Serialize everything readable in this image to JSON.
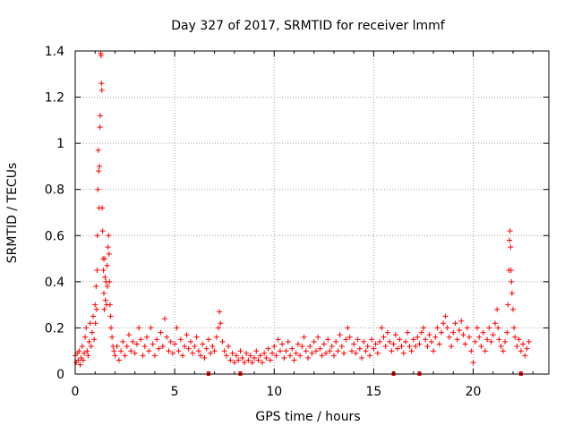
{
  "chart_data": {
    "type": "scatter",
    "title": "Day 327 of 2017, SRMTID for receiver lmmf",
    "xlabel": "GPS time / hours",
    "ylabel": "SRMTID / TECUs",
    "xlim": [
      0,
      23.8
    ],
    "ylim": [
      0,
      1.4
    ],
    "xticks": [
      0,
      5,
      10,
      15,
      20
    ],
    "xtick_labels": [
      "0",
      "5",
      "10",
      "15",
      "20"
    ],
    "yticks": [
      0,
      0.2,
      0.4,
      0.6,
      0.8,
      1.0,
      1.2,
      1.4
    ],
    "ytick_labels": [
      "0",
      "0.2",
      "0.4",
      "0.6",
      "0.8",
      "1",
      "1.2",
      "1.4"
    ],
    "grid": true,
    "marker": "plus",
    "color": "#ff0000",
    "series": [
      {
        "name": "SRMTID",
        "points": [
          [
            0.0,
            0.08
          ],
          [
            0.05,
            0.05
          ],
          [
            0.1,
            0.09
          ],
          [
            0.15,
            0.06
          ],
          [
            0.2,
            0.1
          ],
          [
            0.25,
            0.04
          ],
          [
            0.3,
            0.07
          ],
          [
            0.35,
            0.12
          ],
          [
            0.4,
            0.06
          ],
          [
            0.45,
            0.09
          ],
          [
            0.5,
            0.16
          ],
          [
            0.55,
            0.2
          ],
          [
            0.6,
            0.1
          ],
          [
            0.65,
            0.08
          ],
          [
            0.7,
            0.14
          ],
          [
            0.75,
            0.22
          ],
          [
            0.8,
            0.12
          ],
          [
            0.85,
            0.18
          ],
          [
            0.9,
            0.25
          ],
          [
            0.95,
            0.15
          ],
          [
            1.0,
            0.3
          ],
          [
            1.02,
            0.22
          ],
          [
            1.05,
            0.38
          ],
          [
            1.08,
            0.28
          ],
          [
            1.1,
            0.45
          ],
          [
            1.12,
            0.6
          ],
          [
            1.14,
            0.8
          ],
          [
            1.16,
            0.97
          ],
          [
            1.18,
            0.88
          ],
          [
            1.2,
            0.72
          ],
          [
            1.22,
            0.9
          ],
          [
            1.24,
            1.07
          ],
          [
            1.26,
            1.12
          ],
          [
            1.28,
            1.39
          ],
          [
            1.3,
            1.38
          ],
          [
            1.32,
            1.26
          ],
          [
            1.34,
            1.23
          ],
          [
            1.36,
            0.72
          ],
          [
            1.38,
            0.62
          ],
          [
            1.4,
            0.5
          ],
          [
            1.42,
            0.45
          ],
          [
            1.44,
            0.35
          ],
          [
            1.46,
            0.28
          ],
          [
            1.48,
            0.5
          ],
          [
            1.5,
            0.42
          ],
          [
            1.52,
            0.32
          ],
          [
            1.55,
            0.4
          ],
          [
            1.58,
            0.3
          ],
          [
            1.6,
            0.47
          ],
          [
            1.62,
            0.38
          ],
          [
            1.65,
            0.55
          ],
          [
            1.68,
            0.6
          ],
          [
            1.7,
            0.52
          ],
          [
            1.72,
            0.4
          ],
          [
            1.75,
            0.3
          ],
          [
            1.78,
            0.25
          ],
          [
            1.8,
            0.2
          ],
          [
            1.85,
            0.16
          ],
          [
            1.9,
            0.12
          ],
          [
            1.95,
            0.1
          ],
          [
            2.0,
            0.08
          ],
          [
            2.1,
            0.12
          ],
          [
            2.2,
            0.06
          ],
          [
            2.3,
            0.1
          ],
          [
            2.4,
            0.14
          ],
          [
            2.5,
            0.08
          ],
          [
            2.6,
            0.12
          ],
          [
            2.7,
            0.17
          ],
          [
            2.8,
            0.1
          ],
          [
            2.9,
            0.14
          ],
          [
            3.0,
            0.09
          ],
          [
            3.1,
            0.13
          ],
          [
            3.2,
            0.2
          ],
          [
            3.3,
            0.15
          ],
          [
            3.4,
            0.08
          ],
          [
            3.5,
            0.12
          ],
          [
            3.6,
            0.16
          ],
          [
            3.7,
            0.1
          ],
          [
            3.8,
            0.2
          ],
          [
            3.9,
            0.13
          ],
          [
            4.0,
            0.08
          ],
          [
            4.1,
            0.15
          ],
          [
            4.2,
            0.11
          ],
          [
            4.3,
            0.18
          ],
          [
            4.4,
            0.12
          ],
          [
            4.5,
            0.24
          ],
          [
            4.6,
            0.16
          ],
          [
            4.7,
            0.1
          ],
          [
            4.8,
            0.14
          ],
          [
            4.9,
            0.09
          ],
          [
            5.0,
            0.13
          ],
          [
            5.1,
            0.2
          ],
          [
            5.2,
            0.1
          ],
          [
            5.3,
            0.15
          ],
          [
            5.4,
            0.08
          ],
          [
            5.5,
            0.12
          ],
          [
            5.6,
            0.17
          ],
          [
            5.7,
            0.11
          ],
          [
            5.8,
            0.14
          ],
          [
            5.9,
            0.09
          ],
          [
            6.0,
            0.12
          ],
          [
            6.1,
            0.16
          ],
          [
            6.2,
            0.1
          ],
          [
            6.3,
            0.08
          ],
          [
            6.4,
            0.13
          ],
          [
            6.5,
            0.07
          ],
          [
            6.6,
            0.11
          ],
          [
            6.7,
            0.15
          ],
          [
            6.8,
            0.09
          ],
          [
            6.9,
            0.12
          ],
          [
            7.0,
            0.1
          ],
          [
            7.1,
            0.16
          ],
          [
            7.2,
            0.2
          ],
          [
            7.25,
            0.27
          ],
          [
            7.3,
            0.22
          ],
          [
            7.4,
            0.14
          ],
          [
            7.5,
            0.1
          ],
          [
            7.6,
            0.08
          ],
          [
            7.7,
            0.12
          ],
          [
            7.8,
            0.06
          ],
          [
            7.9,
            0.09
          ],
          [
            8.0,
            0.05
          ],
          [
            8.1,
            0.08
          ],
          [
            8.2,
            0.06
          ],
          [
            8.3,
            0.1
          ],
          [
            8.4,
            0.07
          ],
          [
            8.5,
            0.05
          ],
          [
            8.6,
            0.09
          ],
          [
            8.7,
            0.06
          ],
          [
            8.8,
            0.08
          ],
          [
            8.9,
            0.05
          ],
          [
            9.0,
            0.07
          ],
          [
            9.1,
            0.1
          ],
          [
            9.2,
            0.06
          ],
          [
            9.3,
            0.08
          ],
          [
            9.4,
            0.05
          ],
          [
            9.5,
            0.09
          ],
          [
            9.6,
            0.07
          ],
          [
            9.7,
            0.11
          ],
          [
            9.8,
            0.06
          ],
          [
            9.9,
            0.09
          ],
          [
            10.0,
            0.12
          ],
          [
            10.1,
            0.08
          ],
          [
            10.2,
            0.15
          ],
          [
            10.3,
            0.1
          ],
          [
            10.4,
            0.13
          ],
          [
            10.5,
            0.07
          ],
          [
            10.6,
            0.1
          ],
          [
            10.7,
            0.14
          ],
          [
            10.8,
            0.08
          ],
          [
            10.9,
            0.11
          ],
          [
            11.0,
            0.06
          ],
          [
            11.1,
            0.09
          ],
          [
            11.2,
            0.13
          ],
          [
            11.3,
            0.08
          ],
          [
            11.4,
            0.12
          ],
          [
            11.5,
            0.16
          ],
          [
            11.6,
            0.1
          ],
          [
            11.7,
            0.07
          ],
          [
            11.8,
            0.12
          ],
          [
            11.9,
            0.09
          ],
          [
            12.0,
            0.14
          ],
          [
            12.1,
            0.1
          ],
          [
            12.2,
            0.16
          ],
          [
            12.3,
            0.11
          ],
          [
            12.4,
            0.08
          ],
          [
            12.5,
            0.13
          ],
          [
            12.6,
            0.09
          ],
          [
            12.7,
            0.15
          ],
          [
            12.8,
            0.1
          ],
          [
            12.9,
            0.12
          ],
          [
            13.0,
            0.08
          ],
          [
            13.1,
            0.14
          ],
          [
            13.2,
            0.1
          ],
          [
            13.3,
            0.17
          ],
          [
            13.4,
            0.12
          ],
          [
            13.5,
            0.09
          ],
          [
            13.6,
            0.15
          ],
          [
            13.7,
            0.2
          ],
          [
            13.8,
            0.16
          ],
          [
            13.9,
            0.1
          ],
          [
            14.0,
            0.13
          ],
          [
            14.1,
            0.09
          ],
          [
            14.2,
            0.15
          ],
          [
            14.3,
            0.11
          ],
          [
            14.4,
            0.07
          ],
          [
            14.5,
            0.14
          ],
          [
            14.6,
            0.1
          ],
          [
            14.7,
            0.12
          ],
          [
            14.8,
            0.08
          ],
          [
            14.9,
            0.15
          ],
          [
            15.0,
            0.11
          ],
          [
            15.1,
            0.13
          ],
          [
            15.2,
            0.09
          ],
          [
            15.3,
            0.14
          ],
          [
            15.4,
            0.2
          ],
          [
            15.5,
            0.16
          ],
          [
            15.6,
            0.12
          ],
          [
            15.7,
            0.18
          ],
          [
            15.8,
            0.14
          ],
          [
            15.9,
            0.1
          ],
          [
            16.0,
            0.13
          ],
          [
            16.1,
            0.17
          ],
          [
            16.2,
            0.11
          ],
          [
            16.3,
            0.15
          ],
          [
            16.4,
            0.12
          ],
          [
            16.5,
            0.09
          ],
          [
            16.6,
            0.14
          ],
          [
            16.7,
            0.18
          ],
          [
            16.8,
            0.12
          ],
          [
            16.9,
            0.1
          ],
          [
            17.0,
            0.15
          ],
          [
            17.1,
            0.12
          ],
          [
            17.2,
            0.16
          ],
          [
            17.3,
            0.13
          ],
          [
            17.4,
            0.18
          ],
          [
            17.5,
            0.2
          ],
          [
            17.6,
            0.15
          ],
          [
            17.7,
            0.12
          ],
          [
            17.8,
            0.17
          ],
          [
            17.9,
            0.14
          ],
          [
            18.0,
            0.1
          ],
          [
            18.1,
            0.16
          ],
          [
            18.2,
            0.2
          ],
          [
            18.3,
            0.13
          ],
          [
            18.4,
            0.18
          ],
          [
            18.5,
            0.22
          ],
          [
            18.6,
            0.25
          ],
          [
            18.7,
            0.2
          ],
          [
            18.8,
            0.16
          ],
          [
            18.9,
            0.12
          ],
          [
            19.0,
            0.18
          ],
          [
            19.1,
            0.22
          ],
          [
            19.2,
            0.15
          ],
          [
            19.3,
            0.19
          ],
          [
            19.4,
            0.23
          ],
          [
            19.5,
            0.17
          ],
          [
            19.6,
            0.13
          ],
          [
            19.7,
            0.2
          ],
          [
            19.8,
            0.16
          ],
          [
            19.9,
            0.1
          ],
          [
            20.0,
            0.05
          ],
          [
            20.1,
            0.14
          ],
          [
            20.2,
            0.2
          ],
          [
            20.3,
            0.16
          ],
          [
            20.4,
            0.12
          ],
          [
            20.5,
            0.18
          ],
          [
            20.6,
            0.1
          ],
          [
            20.7,
            0.15
          ],
          [
            20.8,
            0.2
          ],
          [
            20.9,
            0.14
          ],
          [
            21.0,
            0.17
          ],
          [
            21.1,
            0.22
          ],
          [
            21.2,
            0.28
          ],
          [
            21.25,
            0.2
          ],
          [
            21.3,
            0.15
          ],
          [
            21.4,
            0.12
          ],
          [
            21.5,
            0.1
          ],
          [
            21.6,
            0.14
          ],
          [
            21.7,
            0.18
          ],
          [
            21.75,
            0.3
          ],
          [
            21.8,
            0.45
          ],
          [
            21.82,
            0.58
          ],
          [
            21.85,
            0.62
          ],
          [
            21.88,
            0.55
          ],
          [
            21.9,
            0.45
          ],
          [
            21.92,
            0.4
          ],
          [
            21.95,
            0.35
          ],
          [
            22.0,
            0.28
          ],
          [
            22.05,
            0.2
          ],
          [
            22.1,
            0.16
          ],
          [
            22.2,
            0.12
          ],
          [
            22.3,
            0.15
          ],
          [
            22.4,
            0.1
          ],
          [
            22.5,
            0.13
          ],
          [
            22.6,
            0.08
          ],
          [
            22.7,
            0.11
          ],
          [
            22.8,
            0.14
          ]
        ]
      }
    ],
    "zero_markers_x": [
      6.7,
      8.3,
      16.0,
      17.3,
      22.4
    ]
  }
}
